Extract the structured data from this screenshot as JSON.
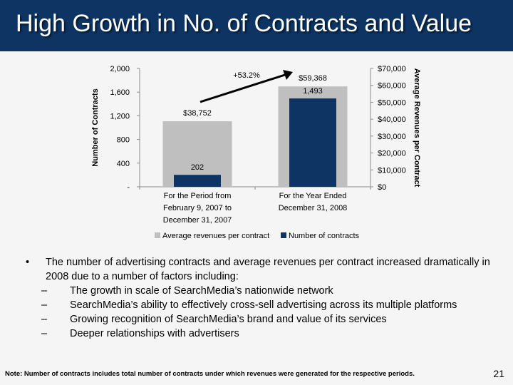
{
  "slide": {
    "title": "High Growth in No. of Contracts and Value",
    "page_number": "21",
    "note": "Note: Number of contracts includes total number of contracts under which revenues were generated for the respective periods."
  },
  "bullets": {
    "main": "The number of advertising contracts and average revenues per contract increased dramatically in 2008 due to a number of factors including:",
    "sub": [
      "The growth in scale of SearchMedia’s nationwide network",
      "SearchMedia’s ability to effectively cross-sell advertising across its multiple platforms",
      "Growing recognition of SearchMedia’s brand and value of its services",
      "Deeper relationships with advertisers"
    ]
  },
  "colors": {
    "title_bar": "#0d3463",
    "avg_revenue_bar": "#bfbfbf",
    "contracts_bar": "#0d3463"
  },
  "chart_data": {
    "type": "bar",
    "categories": [
      [
        "For the Period from",
        "February 9, 2007 to",
        "December 31, 2007"
      ],
      [
        "For the Year Ended",
        "December 31, 2008"
      ]
    ],
    "series": [
      {
        "name": "Average revenues per contract",
        "axis": "right",
        "values": [
          38752,
          59368
        ],
        "labels": [
          "$38,752",
          "$59,368"
        ],
        "color": "#bfbfbf"
      },
      {
        "name": "Number of contracts",
        "axis": "left",
        "values": [
          202,
          1493
        ],
        "labels": [
          "202",
          "1,493"
        ],
        "color": "#0d3463"
      }
    ],
    "ylabel": "Number of Contracts",
    "y2label": "Average Revenues per Contract",
    "ylim": [
      0,
      2000
    ],
    "y2lim": [
      0,
      70000
    ],
    "yticks": [
      0,
      400,
      800,
      1200,
      1600,
      2000
    ],
    "ytick_labels": [
      "-",
      "400",
      "800",
      "1,200",
      "1,600",
      "2,000"
    ],
    "y2ticks": [
      0,
      10000,
      20000,
      30000,
      40000,
      50000,
      60000,
      70000
    ],
    "y2tick_labels": [
      "$0",
      "$10,000",
      "$20,000",
      "$30,000",
      "$40,000",
      "$50,000",
      "$60,000",
      "$70,000"
    ],
    "annotation": "+53.2%",
    "legend": "bottom",
    "grid": false
  }
}
